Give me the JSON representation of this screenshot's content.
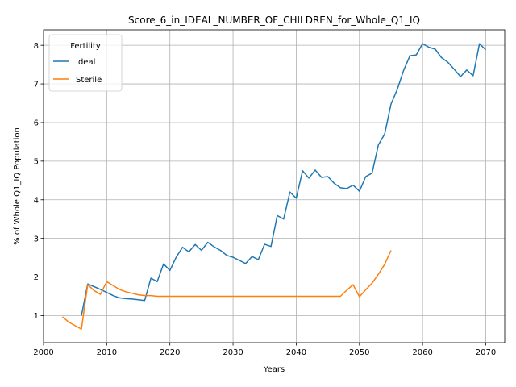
{
  "chart_data": {
    "type": "line",
    "title": "Score_6_in_IDEAL_NUMBER_OF_CHILDREN_for_Whole_Q1_IQ",
    "xlabel": "Years",
    "ylabel": "% of Whole Q1_IQ Population",
    "xlim": [
      2000,
      2073
    ],
    "ylim": [
      0.3,
      8.4
    ],
    "xticks": [
      2000,
      2010,
      2020,
      2030,
      2040,
      2050,
      2060,
      2070
    ],
    "yticks": [
      1,
      2,
      3,
      4,
      5,
      6,
      7,
      8
    ],
    "grid": true,
    "legend": {
      "title": "Fertility",
      "placement": "top-left"
    },
    "series": [
      {
        "name": "Ideal",
        "color": "#1f77b4",
        "x": [
          2006,
          2007,
          2008,
          2009,
          2010,
          2011,
          2012,
          2013,
          2014,
          2015,
          2016,
          2017,
          2018,
          2019,
          2020,
          2021,
          2022,
          2023,
          2024,
          2025,
          2026,
          2027,
          2028,
          2029,
          2030,
          2031,
          2032,
          2033,
          2034,
          2035,
          2036,
          2037,
          2038,
          2039,
          2040,
          2041,
          2042,
          2043,
          2044,
          2045,
          2046,
          2047,
          2048,
          2049,
          2050,
          2051,
          2052,
          2053,
          2054,
          2055,
          2056,
          2057,
          2058,
          2059,
          2060,
          2061,
          2062,
          2063,
          2064,
          2065,
          2066,
          2067,
          2068,
          2069,
          2070
        ],
        "y": [
          1.0,
          1.82,
          1.75,
          1.68,
          1.6,
          1.52,
          1.46,
          1.44,
          1.43,
          1.41,
          1.39,
          1.97,
          1.88,
          2.34,
          2.17,
          2.51,
          2.77,
          2.65,
          2.84,
          2.69,
          2.9,
          2.78,
          2.69,
          2.56,
          2.51,
          2.43,
          2.35,
          2.53,
          2.45,
          2.85,
          2.79,
          3.59,
          3.5,
          4.2,
          4.04,
          4.75,
          4.56,
          4.77,
          4.58,
          4.6,
          4.43,
          4.31,
          4.29,
          4.38,
          4.22,
          4.6,
          4.69,
          5.42,
          5.7,
          6.48,
          6.86,
          7.35,
          7.73,
          7.75,
          8.04,
          7.95,
          7.9,
          7.68,
          7.56,
          7.38,
          7.19,
          7.36,
          7.21,
          8.04,
          7.88
        ]
      },
      {
        "name": "Sterile",
        "color": "#ff7f0e",
        "x": [
          2003,
          2004,
          2005,
          2006,
          2007,
          2008,
          2009,
          2010,
          2011,
          2012,
          2013,
          2014,
          2015,
          2016,
          2017,
          2018,
          2019,
          2020,
          2021,
          2022,
          2023,
          2024,
          2025,
          2026,
          2027,
          2028,
          2029,
          2030,
          2031,
          2032,
          2033,
          2034,
          2035,
          2036,
          2037,
          2038,
          2039,
          2040,
          2041,
          2042,
          2043,
          2044,
          2045,
          2046,
          2047,
          2048,
          2049,
          2050,
          2051,
          2052,
          2053,
          2054,
          2055
        ],
        "y": [
          0.97,
          0.83,
          0.74,
          0.65,
          1.8,
          1.65,
          1.55,
          1.88,
          1.78,
          1.68,
          1.62,
          1.58,
          1.54,
          1.52,
          1.52,
          1.5,
          1.5,
          1.5,
          1.5,
          1.5,
          1.5,
          1.5,
          1.5,
          1.5,
          1.5,
          1.5,
          1.5,
          1.5,
          1.5,
          1.5,
          1.5,
          1.5,
          1.5,
          1.5,
          1.5,
          1.5,
          1.5,
          1.5,
          1.5,
          1.5,
          1.5,
          1.5,
          1.5,
          1.5,
          1.5,
          1.66,
          1.8,
          1.49,
          1.67,
          1.84,
          2.07,
          2.33,
          2.69
        ]
      }
    ]
  }
}
